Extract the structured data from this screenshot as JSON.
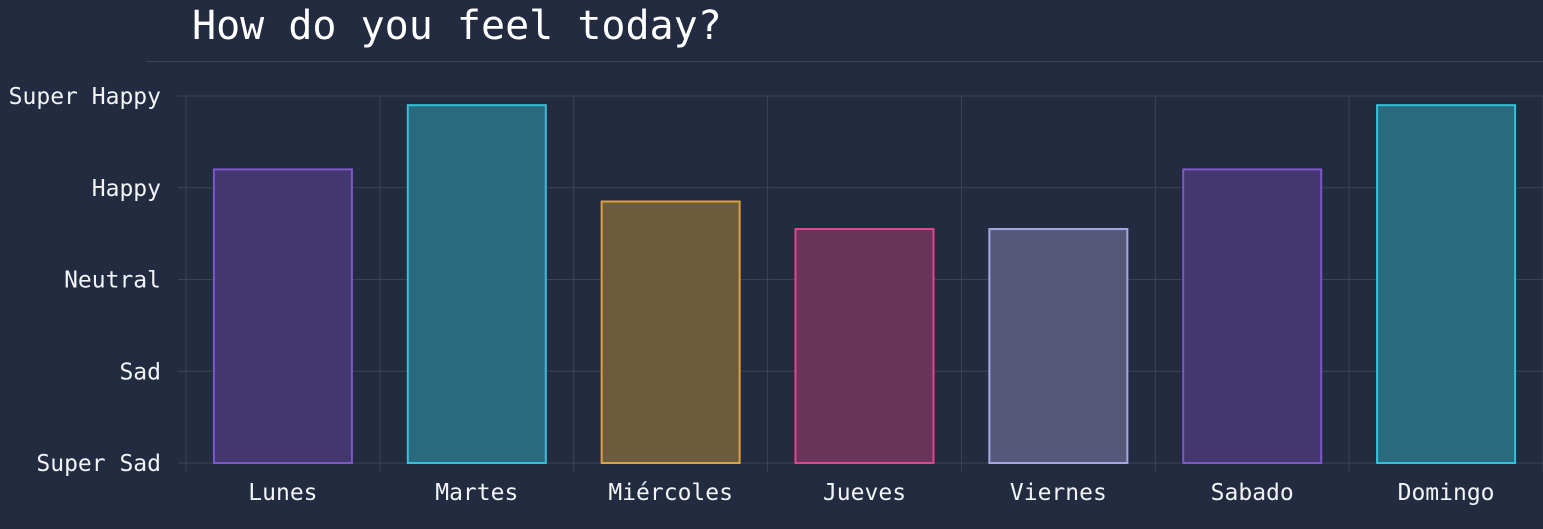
{
  "title": "How do you feel today?",
  "chart_data": {
    "type": "bar",
    "y_levels": [
      "Super Sad",
      "Sad",
      "Neutral",
      "Happy",
      "Super Happy"
    ],
    "categories": [
      "Lunes",
      "Martes",
      "Miércoles",
      "Jueves",
      "Viernes",
      "Sabado",
      "Domingo"
    ],
    "values": [
      3.2,
      3.9,
      2.85,
      2.55,
      2.55,
      3.2,
      3.9
    ],
    "ylim": [
      0,
      4
    ],
    "grid": true,
    "colors": {
      "background": "#222b40",
      "grid": "#3b4455",
      "text": "#f2f4f8",
      "bar_fills": [
        "#42376f",
        "#296a7e",
        "#6d5b3d",
        "#69345a",
        "#555879",
        "#42376f",
        "#296a7e"
      ],
      "bar_strokes": [
        "#7e57c9",
        "#2fc3dc",
        "#dca23d",
        "#e24592",
        "#a8a6e0",
        "#7e57c9",
        "#2fc3dc"
      ]
    }
  }
}
